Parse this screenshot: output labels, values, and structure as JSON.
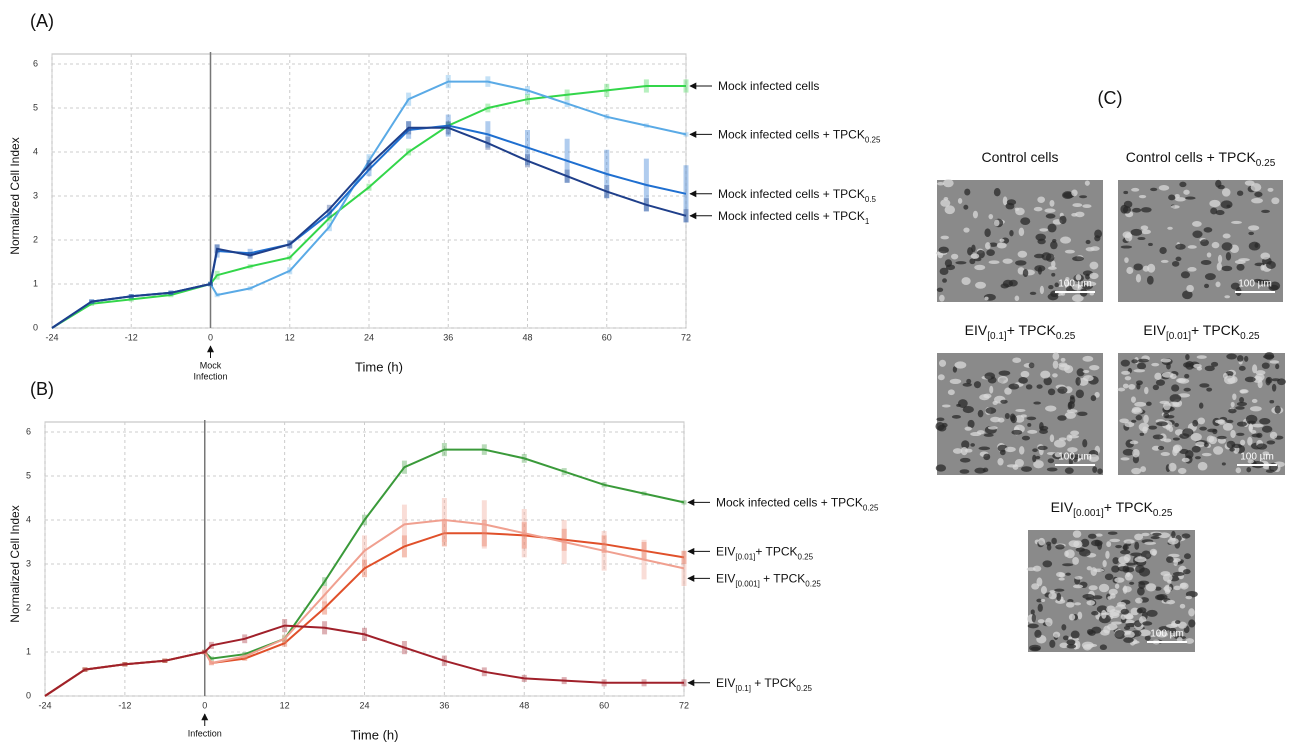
{
  "chart_data": [
    {
      "type": "line",
      "label": "(A)",
      "x_label": "Time (h)",
      "y_label": "Normalized Cell Index",
      "annotation": {
        "text": [
          "Mock",
          "Infection"
        ],
        "x": 0
      },
      "xlim": [
        -24,
        72
      ],
      "xticks": [
        -24,
        -12,
        0,
        12,
        24,
        36,
        48,
        60,
        72
      ],
      "ylim": [
        0,
        6
      ],
      "yticks": [
        0,
        1,
        2,
        3,
        4,
        5,
        6
      ],
      "grid": true,
      "x": [
        -24,
        -18,
        -12,
        -6,
        0,
        1,
        6,
        12,
        18,
        24,
        30,
        36,
        42,
        48,
        54,
        60,
        66,
        72
      ],
      "series": [
        {
          "name": [
            "Mock infected cells"
          ],
          "color": "#33d64a",
          "values": [
            0,
            0.55,
            0.65,
            0.75,
            1.0,
            1.2,
            1.4,
            1.6,
            2.5,
            3.2,
            4.0,
            4.6,
            5.0,
            5.2,
            5.3,
            5.4,
            5.5,
            5.5
          ],
          "errors": [
            0,
            0.05,
            0.05,
            0.05,
            0.05,
            0.1,
            0.05,
            0.05,
            0.08,
            0.08,
            0.08,
            0.08,
            0.1,
            0.12,
            0.12,
            0.15,
            0.15,
            0.15
          ]
        },
        {
          "name": [
            "Mock infected cells + TPCK",
            "0.25"
          ],
          "color": "#5aaae6",
          "values": [
            0,
            0.6,
            0.72,
            0.8,
            1.0,
            0.75,
            0.9,
            1.3,
            2.3,
            3.8,
            5.2,
            5.6,
            5.6,
            5.4,
            5.1,
            4.8,
            4.6,
            4.4
          ],
          "errors": [
            0,
            0.05,
            0.05,
            0.05,
            0.05,
            0.05,
            0.05,
            0.08,
            0.1,
            0.15,
            0.15,
            0.15,
            0.12,
            0.1,
            0.08,
            0.06,
            0.05,
            0.05
          ]
        },
        {
          "name": [
            "Mock infected cells + TPCK",
            "0.5"
          ],
          "color": "#1f6fd0",
          "values": [
            0,
            0.6,
            0.72,
            0.8,
            1.0,
            1.75,
            1.7,
            1.9,
            2.6,
            3.6,
            4.5,
            4.6,
            4.4,
            4.1,
            3.8,
            3.5,
            3.25,
            3.05
          ],
          "errors": [
            0,
            0.05,
            0.05,
            0.05,
            0.05,
            0.15,
            0.1,
            0.1,
            0.1,
            0.15,
            0.2,
            0.25,
            0.3,
            0.4,
            0.5,
            0.55,
            0.6,
            0.65
          ]
        },
        {
          "name": [
            "Mock infected cells + TPCK",
            "1"
          ],
          "color": "#1f3f8a",
          "values": [
            0,
            0.6,
            0.72,
            0.8,
            1.0,
            1.8,
            1.65,
            1.9,
            2.7,
            3.7,
            4.55,
            4.55,
            4.2,
            3.8,
            3.45,
            3.1,
            2.8,
            2.55
          ],
          "errors": [
            0,
            0.05,
            0.05,
            0.05,
            0.05,
            0.1,
            0.08,
            0.08,
            0.1,
            0.12,
            0.15,
            0.15,
            0.15,
            0.15,
            0.15,
            0.15,
            0.15,
            0.15
          ]
        }
      ]
    },
    {
      "type": "line",
      "label": "(B)",
      "x_label": "Time (h)",
      "y_label": "Normalized Cell Index",
      "annotation": {
        "text": [
          "Infection"
        ],
        "x": 0
      },
      "xlim": [
        -24,
        72
      ],
      "xticks": [
        -24,
        -12,
        0,
        12,
        24,
        36,
        48,
        60,
        72
      ],
      "ylim": [
        0,
        6
      ],
      "yticks": [
        0,
        1,
        2,
        3,
        4,
        5,
        6
      ],
      "grid": true,
      "x": [
        -24,
        -18,
        -12,
        -6,
        0,
        1,
        6,
        12,
        18,
        24,
        30,
        36,
        42,
        48,
        54,
        60,
        66,
        72
      ],
      "series": [
        {
          "name": [
            "Mock infected cells + TPCK",
            "0.25"
          ],
          "color": "#3a9a3a",
          "values": [
            0,
            0.6,
            0.72,
            0.8,
            1.0,
            0.85,
            0.95,
            1.3,
            2.6,
            4.0,
            5.2,
            5.6,
            5.6,
            5.4,
            5.1,
            4.8,
            4.6,
            4.4
          ],
          "errors": [
            0,
            0.05,
            0.05,
            0.05,
            0.05,
            0.05,
            0.05,
            0.08,
            0.1,
            0.12,
            0.15,
            0.15,
            0.12,
            0.1,
            0.08,
            0.06,
            0.05,
            0.05
          ]
        },
        {
          "name": [
            "EIV",
            "[0.01]",
            "+ TPCK",
            "0.25"
          ],
          "color": "#e0502a",
          "values": [
            0,
            0.6,
            0.72,
            0.8,
            1.0,
            0.75,
            0.85,
            1.2,
            2.0,
            2.9,
            3.4,
            3.7,
            3.7,
            3.65,
            3.55,
            3.45,
            3.3,
            3.15
          ],
          "errors": [
            0,
            0.05,
            0.05,
            0.05,
            0.05,
            0.05,
            0.05,
            0.08,
            0.15,
            0.2,
            0.25,
            0.3,
            0.3,
            0.3,
            0.25,
            0.2,
            0.2,
            0.15
          ]
        },
        {
          "name": [
            "EIV",
            "[0.001]",
            " + TPCK",
            "0.25"
          ],
          "color": "#f0a090",
          "values": [
            0,
            0.6,
            0.72,
            0.8,
            1.0,
            0.75,
            0.9,
            1.3,
            2.3,
            3.3,
            3.9,
            4.0,
            3.9,
            3.7,
            3.5,
            3.3,
            3.1,
            2.9
          ],
          "errors": [
            0,
            0.05,
            0.05,
            0.05,
            0.05,
            0.05,
            0.05,
            0.1,
            0.2,
            0.35,
            0.45,
            0.5,
            0.55,
            0.55,
            0.5,
            0.45,
            0.45,
            0.4
          ]
        },
        {
          "name": [
            "EIV",
            "[0.1]",
            " + TPCK",
            "0.25"
          ],
          "color": "#a0202a",
          "values": [
            0,
            0.6,
            0.72,
            0.8,
            1.0,
            1.15,
            1.3,
            1.6,
            1.55,
            1.4,
            1.1,
            0.8,
            0.55,
            0.4,
            0.35,
            0.3,
            0.3,
            0.3
          ],
          "errors": [
            0,
            0.05,
            0.05,
            0.05,
            0.05,
            0.08,
            0.1,
            0.15,
            0.15,
            0.15,
            0.15,
            0.12,
            0.1,
            0.08,
            0.08,
            0.08,
            0.08,
            0.08
          ]
        }
      ]
    }
  ],
  "panel_c": {
    "label": "(C)",
    "images": [
      {
        "title": [
          "Control cells"
        ],
        "scale_bar": "100 µm"
      },
      {
        "title": [
          "Control cells + TPCK",
          "0.25"
        ],
        "scale_bar": "100 µm"
      },
      {
        "title": [
          "EIV",
          "[0.1]",
          "+ TPCK",
          "0.25"
        ],
        "scale_bar": "100 µm"
      },
      {
        "title": [
          "EIV",
          "[0.01]",
          "+ TPCK",
          "0.25"
        ],
        "scale_bar": "100 µm"
      },
      {
        "title": [
          "EIV",
          "[0.001]",
          "+ TPCK",
          "0.25"
        ],
        "scale_bar": "100 µm"
      }
    ]
  }
}
